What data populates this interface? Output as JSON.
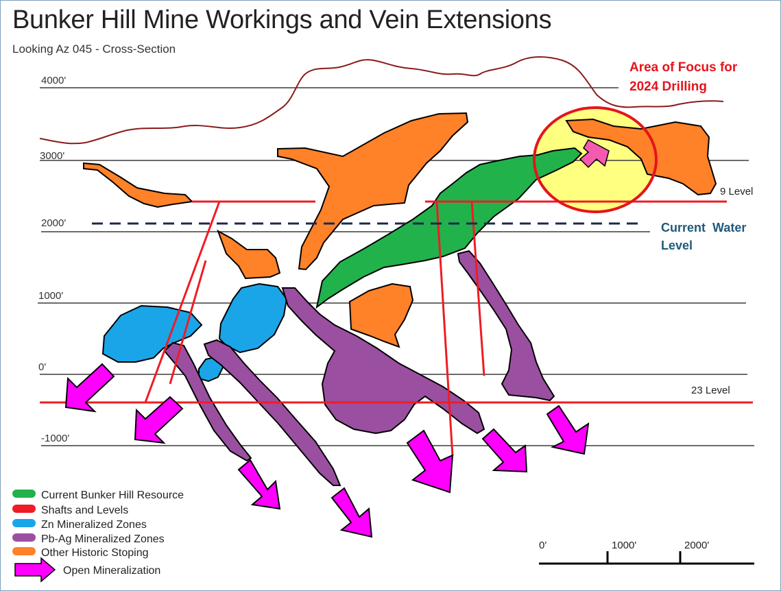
{
  "title": "Bunker Hill Mine Workings and Vein Extensions",
  "subtitle": "Looking Az 045 - Cross-Section",
  "elevations": [
    "4000'",
    "3000'",
    "2000'",
    "1000'",
    "0'",
    "-1000'"
  ],
  "levels": {
    "nine": "9 Level",
    "twentythree": "23 Level"
  },
  "focus": {
    "line1": "Area of Focus for",
    "line2": "2024 Drilling"
  },
  "water": {
    "line1": "Current  Water",
    "line2": "Level"
  },
  "legend": [
    {
      "label": "Current Bunker Hill Resource",
      "color": "#22b24c"
    },
    {
      "label": "Shafts and Levels",
      "color": "#ee1c24"
    },
    {
      "label": "Zn Mineralized Zones",
      "color": "#1aa5e8"
    },
    {
      "label": "Pb-Ag Mineralized Zones",
      "color": "#9b4fa0"
    },
    {
      "label": "Other Historic Stoping",
      "color": "#ff8128"
    }
  ],
  "legend_arrow_label": "Open Mineralization",
  "scale": {
    "labels": [
      "0'",
      "1000'",
      "2000'"
    ]
  },
  "colors": {
    "resource": "#22b24c",
    "shafts": "#ee1c24",
    "zinc": "#1aa5e8",
    "pbag": "#9b4fa0",
    "stoping": "#ff8128",
    "open_arrow": "#ff00ff",
    "topography": "#8b1a1a",
    "focus_fill": "#ffff80",
    "focus_ring": "#e5141c"
  }
}
